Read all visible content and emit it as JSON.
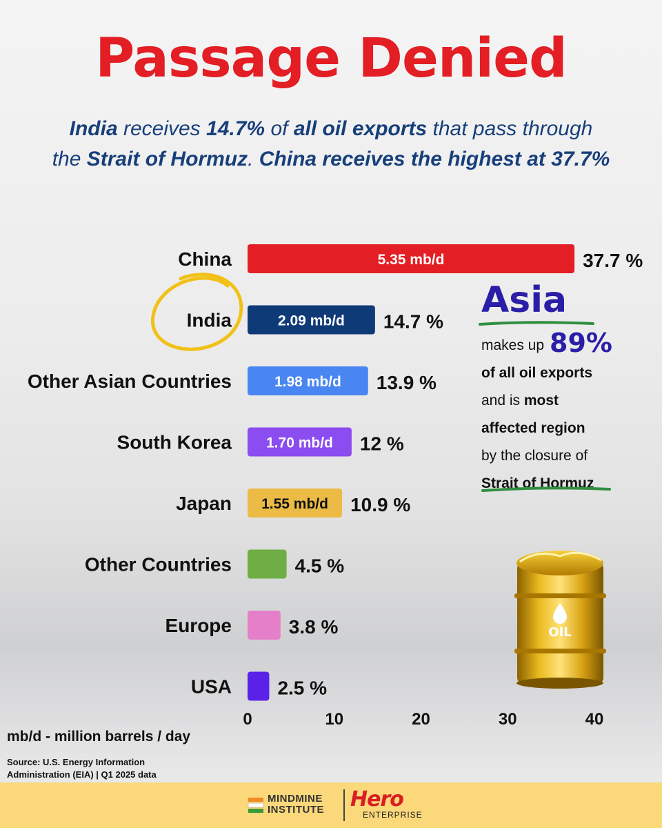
{
  "title": "Passage Denied",
  "subtitle": {
    "line1": {
      "a": "India",
      "b": " receives ",
      "c": "14.7%",
      "d": " of ",
      "e": "all oil exports",
      "f": " that pass through"
    },
    "line2": {
      "a": "the ",
      "b": "Strait of Hormuz",
      "c": ". ",
      "d": "China receives the highest at 37.7%"
    }
  },
  "chart_data": {
    "type": "bar",
    "orientation": "horizontal",
    "categories": [
      "China",
      "India",
      "Other Asian Countries",
      "South Korea",
      "Japan",
      "Other Countries",
      "Europe",
      "USA"
    ],
    "values": [
      37.7,
      14.7,
      13.9,
      12,
      10.9,
      4.5,
      3.8,
      2.5
    ],
    "value_labels": [
      "37.7 %",
      "14.7 %",
      "13.9 %",
      "12 %",
      "10.9 %",
      "4.5 %",
      "3.8 %",
      "2.5 %"
    ],
    "bar_labels": [
      "5.35 mb/d",
      "2.09 mb/d",
      "1.98 mb/d",
      "1.70 mb/d",
      "1.55 mb/d",
      "",
      "",
      ""
    ],
    "colors": [
      "#e31e24",
      "#0f3a78",
      "#4a86f2",
      "#8b4cf0",
      "#ebbb45",
      "#6fae45",
      "#e57fc9",
      "#5a22e8"
    ],
    "bar_label_colors": [
      "#ffffff",
      "#ffffff",
      "#ffffff",
      "#ffffff",
      "#111111",
      "#ffffff",
      "#ffffff",
      "#ffffff"
    ],
    "xlim": [
      0,
      40
    ],
    "xticks": [
      0,
      10,
      20,
      30,
      40
    ],
    "highlight": "India",
    "highlight_color": "#f2c118"
  },
  "panel": {
    "heading": "Asia",
    "line1_pre": "makes up",
    "big_value": "89%",
    "line2": "of all oil exports",
    "line3_pre": "and is ",
    "line3_bold": "most",
    "line4": "affected region",
    "line5": "by the closure of",
    "line6": "Strait of Hormuz",
    "underline_color": "#2f8f3f"
  },
  "barrel": {
    "icon": "oil-barrel-icon",
    "label": "OIL"
  },
  "unit_note": "mb/d - million barrels / day",
  "source": {
    "line1": "Source: U.S. Energy Information",
    "line2": "Administration (EIA) | Q1 2025 data"
  },
  "footer": {
    "brand1_line1": "MINDMINE",
    "brand1_line2": "INSTITUTE",
    "brand2_name": "Hero",
    "brand2_sub": "ENTERPRISE"
  }
}
